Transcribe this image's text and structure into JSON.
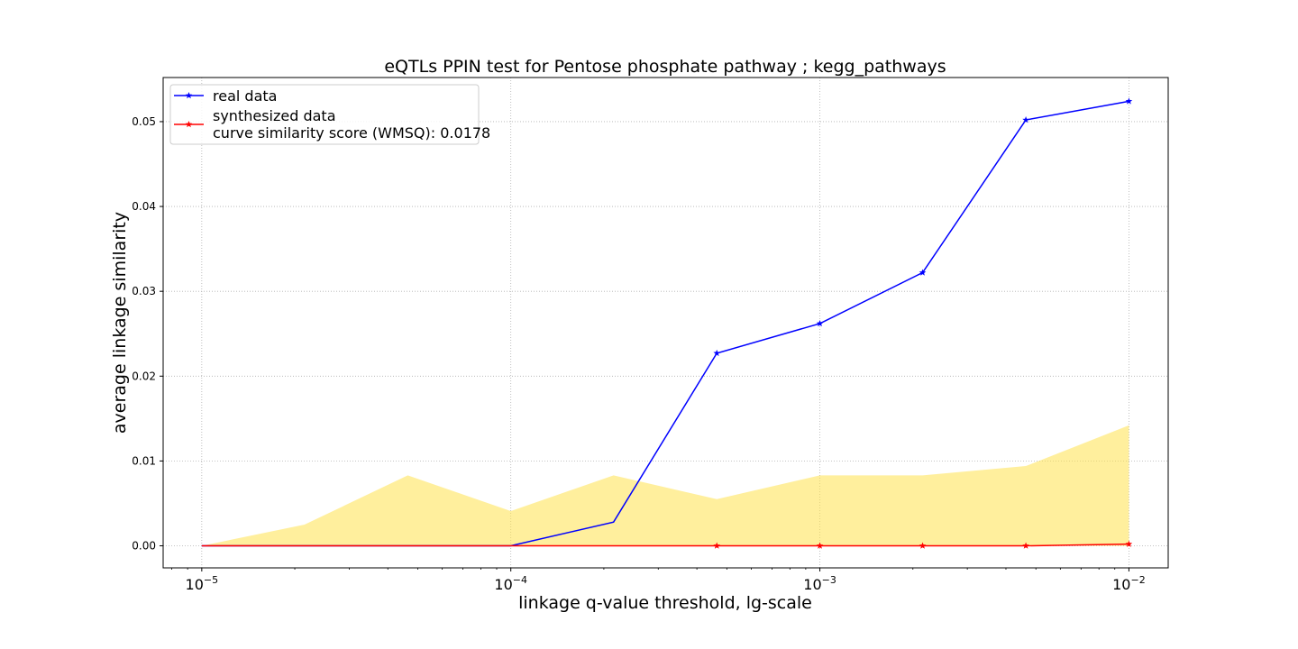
{
  "chart_data": {
    "type": "line",
    "title": "eQTLs PPIN test for Pentose phosphate pathway ; kegg_pathways",
    "xlabel": "linkage q-value threshold, lg-scale",
    "ylabel": "average linkage similarity",
    "x_scale": "log",
    "xlim": [
      7.5e-06,
      0.0134
    ],
    "ylim": [
      -0.0026,
      0.0552
    ],
    "grid": true,
    "legend_position": "top-left",
    "x": [
      1e-05,
      2.15e-05,
      4.64e-05,
      0.0001,
      0.000215,
      0.000464,
      0.001,
      0.00215,
      0.00464,
      0.01
    ],
    "xticks": [
      {
        "value": 1e-05,
        "base": "10",
        "exp": "−5"
      },
      {
        "value": 0.0001,
        "base": "10",
        "exp": "−4"
      },
      {
        "value": 0.001,
        "base": "10",
        "exp": "−3"
      },
      {
        "value": 0.01,
        "base": "10",
        "exp": "−2"
      }
    ],
    "yticks": [
      {
        "value": 0.0,
        "label": "0.00"
      },
      {
        "value": 0.01,
        "label": "0.01"
      },
      {
        "value": 0.02,
        "label": "0.02"
      },
      {
        "value": 0.03,
        "label": "0.03"
      },
      {
        "value": 0.04,
        "label": "0.04"
      },
      {
        "value": 0.05,
        "label": "0.05"
      }
    ],
    "series": [
      {
        "name": "real data",
        "color": "#0000ff",
        "marker": "star",
        "values": [
          0.0,
          0.0,
          0.0,
          0.0,
          0.0028,
          0.0227,
          0.0262,
          0.0322,
          0.0502,
          0.0524
        ],
        "marker_indices": [
          5,
          6,
          7,
          8,
          9
        ]
      },
      {
        "name": "synthesized data",
        "extra_label": "curve similarity score (WMSQ): 0.0178",
        "color": "#ff0000",
        "marker": "star",
        "values": [
          0.0,
          0.0,
          0.0,
          0.0,
          0.0,
          0.0,
          0.0,
          0.0,
          0.0,
          0.0002
        ],
        "marker_indices": [
          5,
          6,
          7,
          8,
          9
        ]
      }
    ],
    "band": {
      "color": "#ffe14d",
      "opacity": 0.55,
      "lower": [
        0.0,
        0.0,
        0.0,
        0.0,
        0.0,
        0.0,
        0.0,
        0.0,
        0.0,
        0.0
      ],
      "upper": [
        0.0,
        0.0025,
        0.0083,
        0.0041,
        0.0083,
        0.0055,
        0.0083,
        0.0083,
        0.0094,
        0.0142
      ]
    }
  }
}
